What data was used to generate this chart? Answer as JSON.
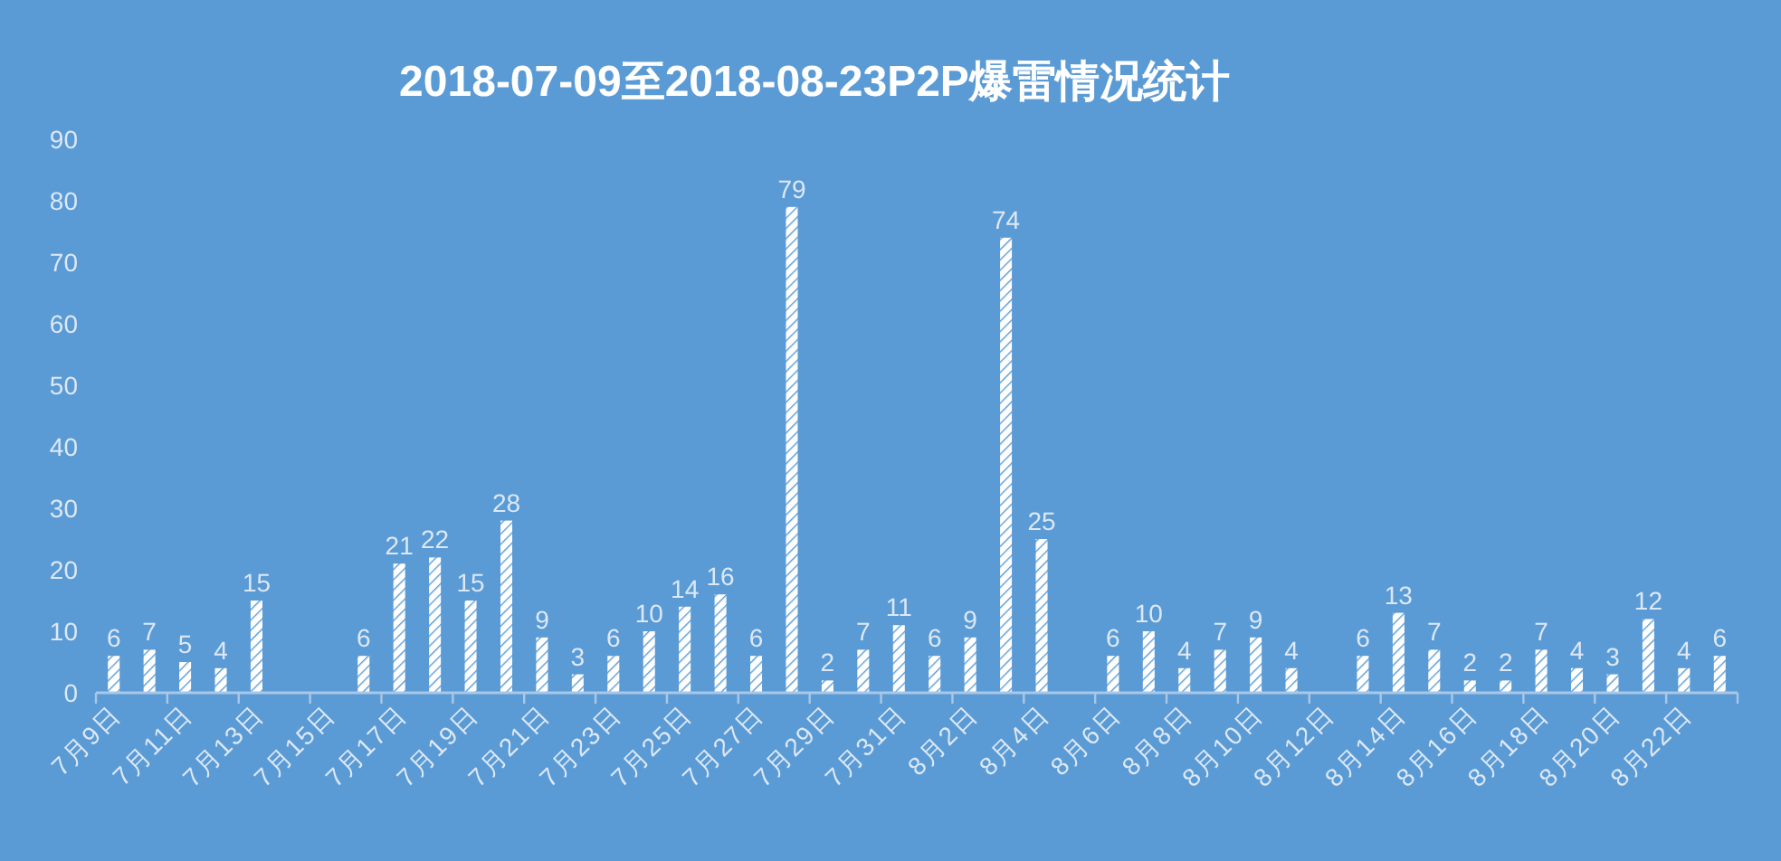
{
  "chart_data": {
    "type": "bar",
    "title": "2018-07-09至2018-08-23P2P爆雷情况统计",
    "categories": [
      "7月9日",
      null,
      "7月11日",
      null,
      "7月13日",
      null,
      "7月15日",
      null,
      "7月17日",
      null,
      "7月19日",
      null,
      "7月21日",
      null,
      "7月23日",
      null,
      "7月25日",
      null,
      "7月27日",
      null,
      "7月29日",
      null,
      "7月31日",
      null,
      "8月2日",
      null,
      "8月4日",
      null,
      "8月6日",
      null,
      "8月8日",
      null,
      "8月10日",
      null,
      "8月12日",
      null,
      "8月14日",
      null,
      "8月16日",
      null,
      "8月18日",
      null,
      "8月20日",
      null,
      "8月22日",
      null
    ],
    "values": [
      6,
      7,
      5,
      4,
      15,
      null,
      null,
      6,
      21,
      22,
      15,
      28,
      9,
      3,
      6,
      10,
      14,
      16,
      6,
      79,
      2,
      7,
      11,
      6,
      9,
      74,
      25,
      null,
      6,
      10,
      4,
      7,
      9,
      4,
      null,
      6,
      13,
      7,
      2,
      2,
      7,
      4,
      3,
      12,
      4,
      6
    ],
    "color": "#ffffff",
    "ylim": [
      0,
      90
    ],
    "yticks": [
      0,
      10,
      20,
      30,
      40,
      50,
      60,
      70,
      80,
      90
    ],
    "data_labels": true
  }
}
